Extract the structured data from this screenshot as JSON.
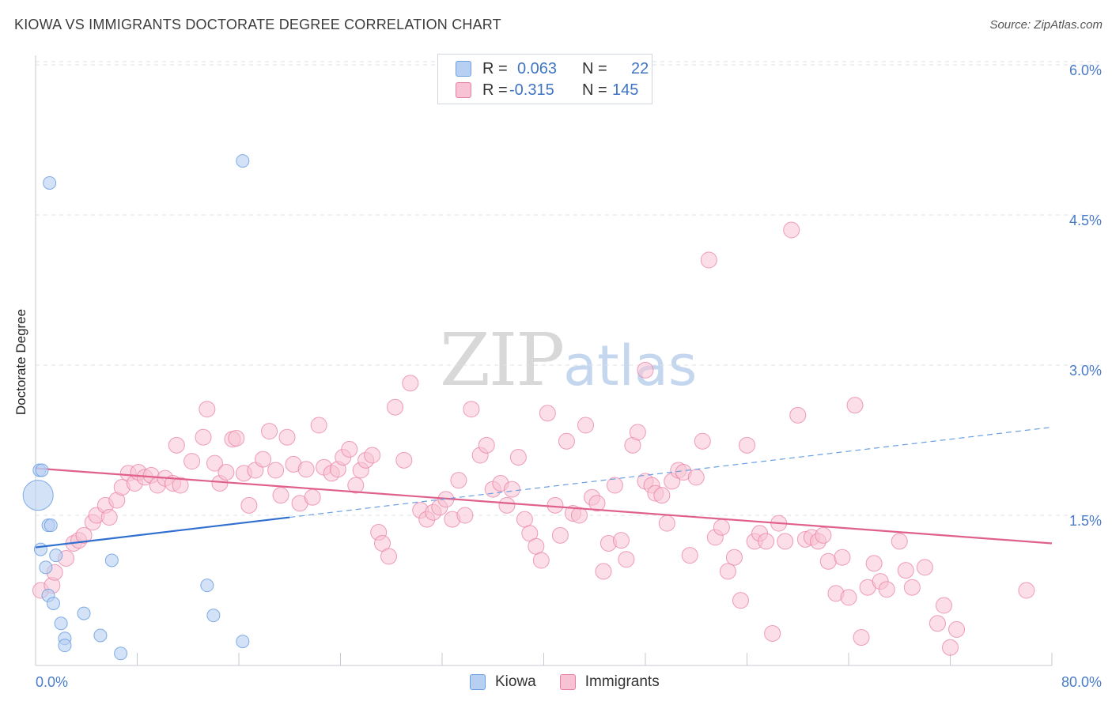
{
  "title": "KIOWA VS IMMIGRANTS DOCTORATE DEGREE CORRELATION CHART",
  "source": "Source: ZipAtlas.com",
  "watermark": {
    "zip": "ZIP",
    "atlas": "atlas"
  },
  "colors": {
    "kiowa": "#6b9fe0",
    "kiowa_fill": "#b7cff2",
    "kiowa_line": "#2f6fcf",
    "immigrants": "#e97fa3",
    "immigrants_fill": "#f7c3d4",
    "immigrants_line": "#e0608c",
    "tick": "#4a7cc8",
    "grid": "#dde3ea"
  },
  "legend": {
    "rows": [
      {
        "key": "R =",
        "r": "0.063",
        "nkey": "N =",
        "n": "22",
        "series": "kiowa"
      },
      {
        "key": "R =",
        "r": "-0.315",
        "nkey": "N =",
        "n": "145",
        "series": "immigrants"
      }
    ]
  },
  "chart_data": {
    "type": "scatter",
    "title": "KIOWA VS IMMIGRANTS DOCTORATE DEGREE CORRELATION CHART",
    "xlabel": "",
    "ylabel": "Doctorate Degree",
    "xlim": [
      0,
      80
    ],
    "ylim": [
      0,
      6.2
    ],
    "x_tick_labels": [
      {
        "value": 0,
        "label": "0.0%"
      },
      {
        "value": 80,
        "label": "80.0%"
      }
    ],
    "y_tick_labels": [
      {
        "value": 1.5,
        "label": "1.5%"
      },
      {
        "value": 3.0,
        "label": "3.0%"
      },
      {
        "value": 4.5,
        "label": "4.5%"
      },
      {
        "value": 6.0,
        "label": "6.0%"
      }
    ],
    "grid": true,
    "legend_position": "top-center",
    "series": [
      {
        "name": "Kiowa",
        "r": 0.063,
        "n": 22,
        "trend": {
          "x0": 0,
          "y0": 1.18,
          "x1": 20,
          "y1": 1.48,
          "dash_to_x": 80,
          "dash_to_y": 2.38
        },
        "points": [
          [
            0.3,
            1.95,
            1
          ],
          [
            0.2,
            1.7,
            2
          ],
          [
            1.1,
            4.82,
            1
          ],
          [
            0.5,
            1.95,
            1
          ],
          [
            1.0,
            1.4,
            1
          ],
          [
            1.2,
            1.4,
            1
          ],
          [
            0.4,
            1.16,
            1
          ],
          [
            0.8,
            0.98,
            1
          ],
          [
            1.6,
            1.1,
            1
          ],
          [
            1.0,
            0.7,
            1
          ],
          [
            1.4,
            0.62,
            1
          ],
          [
            2.0,
            0.42,
            1
          ],
          [
            2.3,
            0.27,
            1
          ],
          [
            2.3,
            0.2,
            1
          ],
          [
            3.8,
            0.52,
            1
          ],
          [
            5.1,
            0.3,
            1
          ],
          [
            6.0,
            1.05,
            1
          ],
          [
            6.7,
            0.12,
            1
          ],
          [
            13.5,
            0.8,
            1
          ],
          [
            14.0,
            0.5,
            1
          ],
          [
            16.3,
            0.24,
            1
          ],
          [
            16.3,
            5.04,
            1
          ]
        ]
      },
      {
        "name": "Immigrants",
        "r": -0.315,
        "n": 145,
        "trend": {
          "x0": 0,
          "y0": 1.97,
          "x1": 80,
          "y1": 1.22
        },
        "points": [
          [
            0.4,
            0.75,
            1
          ],
          [
            1.3,
            0.8,
            1
          ],
          [
            1.5,
            0.93,
            1
          ],
          [
            2.4,
            1.07,
            1
          ],
          [
            3.0,
            1.22,
            1
          ],
          [
            3.4,
            1.25,
            1
          ],
          [
            3.8,
            1.3,
            1
          ],
          [
            4.5,
            1.43,
            1
          ],
          [
            4.8,
            1.5,
            1
          ],
          [
            5.5,
            1.6,
            1
          ],
          [
            5.8,
            1.48,
            1
          ],
          [
            6.4,
            1.65,
            1
          ],
          [
            6.8,
            1.78,
            1
          ],
          [
            7.3,
            1.92,
            1
          ],
          [
            7.8,
            1.82,
            1
          ],
          [
            8.1,
            1.93,
            1
          ],
          [
            8.6,
            1.88,
            1
          ],
          [
            9.1,
            1.9,
            1
          ],
          [
            9.6,
            1.8,
            1
          ],
          [
            10.2,
            1.87,
            1
          ],
          [
            10.8,
            1.82,
            1
          ],
          [
            11.4,
            1.8,
            1
          ],
          [
            11.1,
            2.2,
            1
          ],
          [
            12.3,
            2.04,
            1
          ],
          [
            13.2,
            2.28,
            1
          ],
          [
            13.5,
            2.56,
            1
          ],
          [
            14.1,
            2.02,
            1
          ],
          [
            14.5,
            1.82,
            1
          ],
          [
            15.0,
            1.93,
            1
          ],
          [
            15.5,
            2.26,
            1
          ],
          [
            15.8,
            2.27,
            1
          ],
          [
            16.4,
            1.92,
            1
          ],
          [
            16.8,
            1.6,
            1
          ],
          [
            17.3,
            1.95,
            1
          ],
          [
            17.9,
            2.06,
            1
          ],
          [
            18.4,
            2.34,
            1
          ],
          [
            18.9,
            1.95,
            1
          ],
          [
            19.3,
            1.7,
            1
          ],
          [
            19.8,
            2.28,
            1
          ],
          [
            20.3,
            2.01,
            1
          ],
          [
            20.8,
            1.62,
            1
          ],
          [
            21.3,
            1.96,
            1
          ],
          [
            21.8,
            1.68,
            1
          ],
          [
            22.3,
            2.4,
            1
          ],
          [
            22.7,
            1.98,
            1
          ],
          [
            23.3,
            1.92,
            1
          ],
          [
            23.8,
            1.96,
            1
          ],
          [
            24.2,
            2.08,
            1
          ],
          [
            24.7,
            2.16,
            1
          ],
          [
            25.2,
            1.8,
            1
          ],
          [
            25.6,
            1.95,
            1
          ],
          [
            26.0,
            2.05,
            1
          ],
          [
            26.5,
            2.1,
            1
          ],
          [
            27.0,
            1.33,
            1
          ],
          [
            27.3,
            1.22,
            1
          ],
          [
            27.8,
            1.09,
            1
          ],
          [
            28.3,
            2.58,
            1
          ],
          [
            29.0,
            2.05,
            1
          ],
          [
            29.5,
            2.82,
            1
          ],
          [
            30.3,
            1.55,
            1
          ],
          [
            30.8,
            1.46,
            1
          ],
          [
            31.3,
            1.53,
            1
          ],
          [
            31.8,
            1.58,
            1
          ],
          [
            32.3,
            1.66,
            1
          ],
          [
            32.8,
            1.46,
            1
          ],
          [
            33.3,
            1.85,
            1
          ],
          [
            33.8,
            1.5,
            1
          ],
          [
            34.3,
            2.56,
            1
          ],
          [
            35.0,
            2.1,
            1
          ],
          [
            35.5,
            2.2,
            1
          ],
          [
            36.0,
            1.76,
            1
          ],
          [
            36.6,
            1.82,
            1
          ],
          [
            37.1,
            1.6,
            1
          ],
          [
            37.5,
            1.76,
            1
          ],
          [
            38.0,
            2.08,
            1
          ],
          [
            38.5,
            1.46,
            1
          ],
          [
            38.9,
            1.32,
            1
          ],
          [
            39.4,
            1.19,
            1
          ],
          [
            39.8,
            1.05,
            1
          ],
          [
            40.3,
            2.52,
            1
          ],
          [
            40.9,
            1.6,
            1
          ],
          [
            41.3,
            1.3,
            1
          ],
          [
            41.8,
            2.24,
            1
          ],
          [
            42.3,
            1.52,
            1
          ],
          [
            42.8,
            1.5,
            1
          ],
          [
            43.3,
            2.4,
            1
          ],
          [
            43.8,
            1.68,
            1
          ],
          [
            44.2,
            1.62,
            1
          ],
          [
            44.7,
            0.94,
            1
          ],
          [
            45.1,
            1.22,
            1
          ],
          [
            45.6,
            1.8,
            1
          ],
          [
            46.1,
            1.25,
            1
          ],
          [
            46.5,
            1.06,
            1
          ],
          [
            47.0,
            2.2,
            1
          ],
          [
            47.4,
            2.33,
            1
          ],
          [
            48.0,
            1.84,
            1
          ],
          [
            48.5,
            1.8,
            1
          ],
          [
            48.8,
            1.72,
            1
          ],
          [
            49.3,
            1.7,
            1
          ],
          [
            49.7,
            1.42,
            1
          ],
          [
            50.1,
            1.84,
            1
          ],
          [
            50.6,
            1.95,
            1
          ],
          [
            51.0,
            1.93,
            1
          ],
          [
            51.5,
            1.1,
            1
          ],
          [
            52.0,
            1.88,
            1
          ],
          [
            52.5,
            2.24,
            1
          ],
          [
            53.0,
            4.05,
            1
          ],
          [
            53.5,
            1.28,
            1
          ],
          [
            54.0,
            1.38,
            1
          ],
          [
            54.5,
            0.94,
            1
          ],
          [
            55.0,
            1.08,
            1
          ],
          [
            55.5,
            0.65,
            1
          ],
          [
            56.0,
            2.2,
            1
          ],
          [
            56.6,
            1.24,
            1
          ],
          [
            57.0,
            1.32,
            1
          ],
          [
            57.5,
            1.24,
            1
          ],
          [
            58.0,
            0.32,
            1
          ],
          [
            58.5,
            1.42,
            1
          ],
          [
            59.0,
            1.24,
            1
          ],
          [
            59.5,
            4.35,
            1
          ],
          [
            60.0,
            2.5,
            1
          ],
          [
            60.6,
            1.26,
            1
          ],
          [
            61.1,
            1.28,
            1
          ],
          [
            61.6,
            1.24,
            1
          ],
          [
            62.0,
            1.3,
            1
          ],
          [
            62.4,
            1.04,
            1
          ],
          [
            63.0,
            0.72,
            1
          ],
          [
            63.5,
            1.08,
            1
          ],
          [
            64.0,
            0.68,
            1
          ],
          [
            64.5,
            2.6,
            1
          ],
          [
            65.0,
            0.28,
            1
          ],
          [
            65.5,
            0.78,
            1
          ],
          [
            66.0,
            1.02,
            1
          ],
          [
            66.5,
            0.84,
            1
          ],
          [
            67.0,
            0.76,
            1
          ],
          [
            68.0,
            1.24,
            1
          ],
          [
            68.5,
            0.95,
            1
          ],
          [
            69.0,
            0.78,
            1
          ],
          [
            70.0,
            0.98,
            1
          ],
          [
            71.0,
            0.42,
            1
          ],
          [
            71.5,
            0.6,
            1
          ],
          [
            72.0,
            0.18,
            1
          ],
          [
            72.5,
            0.36,
            1
          ],
          [
            78.0,
            0.75,
            1
          ],
          [
            48.0,
            2.95,
            1
          ]
        ]
      }
    ]
  },
  "bottom_legend": [
    {
      "label": "Kiowa",
      "series": "kiowa"
    },
    {
      "label": "Immigrants",
      "series": "immigrants"
    }
  ]
}
